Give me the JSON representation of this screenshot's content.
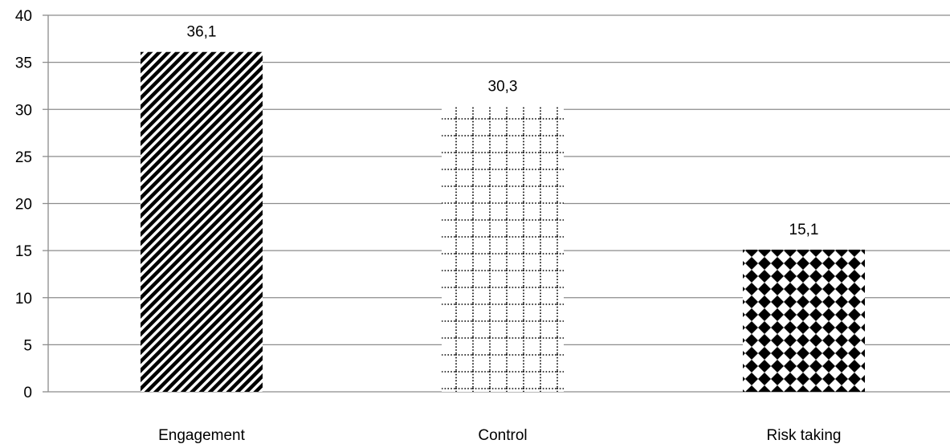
{
  "chart_data": {
    "type": "bar",
    "title": "",
    "xlabel": "",
    "ylabel": "",
    "categories": [
      "Engagement",
      "Control",
      "Risk taking"
    ],
    "values": [
      36.1,
      30.3,
      15.1
    ],
    "value_labels": [
      "36,1",
      "30,3",
      "15,1"
    ],
    "ylim": [
      0,
      40
    ],
    "y_ticks": [
      0,
      5,
      10,
      15,
      20,
      25,
      30,
      35,
      40
    ],
    "y_tick_labels": [
      "0",
      "5",
      "10",
      "15",
      "20",
      "25",
      "30",
      "35",
      "40"
    ],
    "grid": true,
    "legend": "none",
    "bar_fills": [
      "diagonal-stripes",
      "dotted-grid",
      "diamond-checker"
    ],
    "colors": {
      "ink": "#000000",
      "grid": "#8c8c8c",
      "background": "#ffffff"
    }
  }
}
